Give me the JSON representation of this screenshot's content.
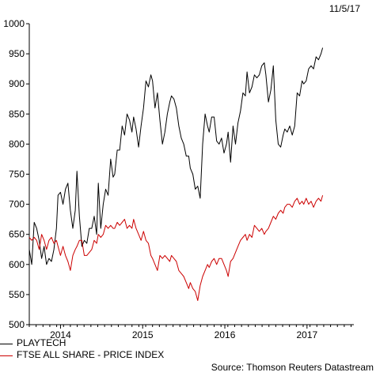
{
  "date_label": "11/5/17",
  "source": "Source: Thomson Reuters Datastream",
  "colors": {
    "playtech": "#000000",
    "ftse": "#cc0000"
  },
  "chart_data": {
    "type": "line",
    "ylim": [
      500,
      1000
    ],
    "yticks": [
      500,
      550,
      600,
      650,
      700,
      750,
      800,
      850,
      900,
      950,
      1000
    ],
    "xlim": [
      2013.45,
      2017.4
    ],
    "xticks": [
      {
        "label": "2014",
        "pos": 2013.83
      },
      {
        "label": "2015",
        "pos": 2014.83
      },
      {
        "label": "2016",
        "pos": 2015.83
      },
      {
        "label": "2017",
        "pos": 2016.83
      }
    ],
    "series": [
      {
        "name": "PLAYTECH",
        "color": "#000000",
        "points": [
          [
            2013.45,
            625
          ],
          [
            2013.48,
            600
          ],
          [
            2013.51,
            670
          ],
          [
            2013.54,
            660
          ],
          [
            2013.57,
            640
          ],
          [
            2013.6,
            610
          ],
          [
            2013.63,
            630
          ],
          [
            2013.66,
            600
          ],
          [
            2013.69,
            610
          ],
          [
            2013.72,
            605
          ],
          [
            2013.75,
            625
          ],
          [
            2013.78,
            660
          ],
          [
            2013.8,
            715
          ],
          [
            2013.83,
            720
          ],
          [
            2013.86,
            700
          ],
          [
            2013.89,
            725
          ],
          [
            2013.92,
            735
          ],
          [
            2013.95,
            690
          ],
          [
            2013.98,
            660
          ],
          [
            2014.01,
            690
          ],
          [
            2014.03,
            755
          ],
          [
            2014.06,
            680
          ],
          [
            2014.09,
            630
          ],
          [
            2014.12,
            640
          ],
          [
            2014.15,
            635
          ],
          [
            2014.18,
            660
          ],
          [
            2014.21,
            660
          ],
          [
            2014.24,
            680
          ],
          [
            2014.27,
            650
          ],
          [
            2014.29,
            735
          ],
          [
            2014.32,
            660
          ],
          [
            2014.35,
            700
          ],
          [
            2014.38,
            725
          ],
          [
            2014.41,
            715
          ],
          [
            2014.44,
            775
          ],
          [
            2014.47,
            745
          ],
          [
            2014.49,
            750
          ],
          [
            2014.52,
            790
          ],
          [
            2014.55,
            790
          ],
          [
            2014.58,
            830
          ],
          [
            2014.61,
            815
          ],
          [
            2014.64,
            850
          ],
          [
            2014.67,
            840
          ],
          [
            2014.7,
            820
          ],
          [
            2014.72,
            845
          ],
          [
            2014.75,
            825
          ],
          [
            2014.78,
            795
          ],
          [
            2014.81,
            830
          ],
          [
            2014.84,
            860
          ],
          [
            2014.87,
            905
          ],
          [
            2014.9,
            895
          ],
          [
            2014.93,
            915
          ],
          [
            2014.95,
            905
          ],
          [
            2014.98,
            860
          ],
          [
            2015.01,
            885
          ],
          [
            2015.04,
            840
          ],
          [
            2015.07,
            800
          ],
          [
            2015.1,
            820
          ],
          [
            2015.13,
            850
          ],
          [
            2015.16,
            870
          ],
          [
            2015.18,
            880
          ],
          [
            2015.21,
            875
          ],
          [
            2015.24,
            860
          ],
          [
            2015.27,
            830
          ],
          [
            2015.3,
            810
          ],
          [
            2015.33,
            800
          ],
          [
            2015.36,
            780
          ],
          [
            2015.39,
            780
          ],
          [
            2015.41,
            760
          ],
          [
            2015.44,
            750
          ],
          [
            2015.47,
            725
          ],
          [
            2015.5,
            730
          ],
          [
            2015.53,
            710
          ],
          [
            2015.56,
            800
          ],
          [
            2015.59,
            850
          ],
          [
            2015.62,
            830
          ],
          [
            2015.64,
            820
          ],
          [
            2015.67,
            845
          ],
          [
            2015.7,
            845
          ],
          [
            2015.73,
            805
          ],
          [
            2015.76,
            800
          ],
          [
            2015.79,
            810
          ],
          [
            2015.82,
            785
          ],
          [
            2015.85,
            800
          ],
          [
            2015.87,
            820
          ],
          [
            2015.9,
            770
          ],
          [
            2015.93,
            830
          ],
          [
            2015.96,
            800
          ],
          [
            2015.99,
            835
          ],
          [
            2016.02,
            855
          ],
          [
            2016.05,
            885
          ],
          [
            2016.08,
            880
          ],
          [
            2016.1,
            920
          ],
          [
            2016.13,
            885
          ],
          [
            2016.16,
            895
          ],
          [
            2016.19,
            915
          ],
          [
            2016.22,
            910
          ],
          [
            2016.25,
            915
          ],
          [
            2016.28,
            930
          ],
          [
            2016.31,
            935
          ],
          [
            2016.33,
            915
          ],
          [
            2016.36,
            870
          ],
          [
            2016.39,
            890
          ],
          [
            2016.42,
            930
          ],
          [
            2016.45,
            840
          ],
          [
            2016.48,
            800
          ],
          [
            2016.51,
            795
          ],
          [
            2016.54,
            815
          ],
          [
            2016.56,
            825
          ],
          [
            2016.59,
            820
          ],
          [
            2016.62,
            830
          ],
          [
            2016.65,
            815
          ],
          [
            2016.68,
            830
          ],
          [
            2016.71,
            885
          ],
          [
            2016.74,
            880
          ],
          [
            2016.77,
            905
          ],
          [
            2016.79,
            900
          ],
          [
            2016.82,
            905
          ],
          [
            2016.85,
            925
          ],
          [
            2016.88,
            930
          ],
          [
            2016.91,
            925
          ],
          [
            2016.94,
            945
          ],
          [
            2016.97,
            940
          ],
          [
            2017.0,
            950
          ],
          [
            2017.02,
            960
          ]
        ]
      },
      {
        "name": "FTSE ALL SHARE - PRICE INDEX",
        "color": "#cc0000",
        "points": [
          [
            2013.45,
            645
          ],
          [
            2013.48,
            640
          ],
          [
            2013.51,
            645
          ],
          [
            2013.54,
            640
          ],
          [
            2013.57,
            625
          ],
          [
            2013.6,
            650
          ],
          [
            2013.63,
            640
          ],
          [
            2013.66,
            625
          ],
          [
            2013.69,
            640
          ],
          [
            2013.72,
            645
          ],
          [
            2013.75,
            635
          ],
          [
            2013.78,
            640
          ],
          [
            2013.8,
            630
          ],
          [
            2013.83,
            615
          ],
          [
            2013.86,
            630
          ],
          [
            2013.89,
            615
          ],
          [
            2013.92,
            605
          ],
          [
            2013.95,
            590
          ],
          [
            2013.98,
            615
          ],
          [
            2014.01,
            625
          ],
          [
            2014.03,
            630
          ],
          [
            2014.06,
            640
          ],
          [
            2014.09,
            640
          ],
          [
            2014.12,
            615
          ],
          [
            2014.15,
            615
          ],
          [
            2014.18,
            620
          ],
          [
            2014.21,
            625
          ],
          [
            2014.24,
            640
          ],
          [
            2014.27,
            635
          ],
          [
            2014.29,
            650
          ],
          [
            2014.32,
            645
          ],
          [
            2014.35,
            650
          ],
          [
            2014.38,
            665
          ],
          [
            2014.41,
            660
          ],
          [
            2014.44,
            665
          ],
          [
            2014.47,
            660
          ],
          [
            2014.49,
            660
          ],
          [
            2014.52,
            670
          ],
          [
            2014.55,
            665
          ],
          [
            2014.58,
            670
          ],
          [
            2014.61,
            675
          ],
          [
            2014.64,
            660
          ],
          [
            2014.67,
            665
          ],
          [
            2014.7,
            660
          ],
          [
            2014.72,
            675
          ],
          [
            2014.75,
            660
          ],
          [
            2014.78,
            650
          ],
          [
            2014.81,
            640
          ],
          [
            2014.84,
            655
          ],
          [
            2014.87,
            640
          ],
          [
            2014.9,
            635
          ],
          [
            2014.93,
            615
          ],
          [
            2014.95,
            610
          ],
          [
            2014.98,
            600
          ],
          [
            2015.01,
            590
          ],
          [
            2015.04,
            615
          ],
          [
            2015.07,
            610
          ],
          [
            2015.1,
            615
          ],
          [
            2015.13,
            610
          ],
          [
            2015.16,
            605
          ],
          [
            2015.18,
            615
          ],
          [
            2015.21,
            610
          ],
          [
            2015.24,
            605
          ],
          [
            2015.27,
            590
          ],
          [
            2015.3,
            585
          ],
          [
            2015.33,
            580
          ],
          [
            2015.36,
            570
          ],
          [
            2015.39,
            560
          ],
          [
            2015.41,
            570
          ],
          [
            2015.44,
            560
          ],
          [
            2015.47,
            555
          ],
          [
            2015.5,
            540
          ],
          [
            2015.53,
            565
          ],
          [
            2015.56,
            580
          ],
          [
            2015.59,
            590
          ],
          [
            2015.62,
            600
          ],
          [
            2015.64,
            595
          ],
          [
            2015.67,
            605
          ],
          [
            2015.7,
            610
          ],
          [
            2015.73,
            600
          ],
          [
            2015.76,
            610
          ],
          [
            2015.79,
            610
          ],
          [
            2015.82,
            600
          ],
          [
            2015.85,
            590
          ],
          [
            2015.87,
            580
          ],
          [
            2015.9,
            605
          ],
          [
            2015.93,
            610
          ],
          [
            2015.96,
            620
          ],
          [
            2015.99,
            630
          ],
          [
            2016.02,
            640
          ],
          [
            2016.05,
            645
          ],
          [
            2016.08,
            650
          ],
          [
            2016.1,
            640
          ],
          [
            2016.13,
            650
          ],
          [
            2016.16,
            645
          ],
          [
            2016.19,
            665
          ],
          [
            2016.22,
            660
          ],
          [
            2016.25,
            655
          ],
          [
            2016.28,
            660
          ],
          [
            2016.31,
            650
          ],
          [
            2016.33,
            655
          ],
          [
            2016.36,
            660
          ],
          [
            2016.39,
            670
          ],
          [
            2016.42,
            680
          ],
          [
            2016.45,
            675
          ],
          [
            2016.48,
            685
          ],
          [
            2016.51,
            690
          ],
          [
            2016.54,
            685
          ],
          [
            2016.56,
            695
          ],
          [
            2016.59,
            700
          ],
          [
            2016.62,
            700
          ],
          [
            2016.65,
            695
          ],
          [
            2016.68,
            705
          ],
          [
            2016.71,
            710
          ],
          [
            2016.74,
            700
          ],
          [
            2016.77,
            705
          ],
          [
            2016.79,
            700
          ],
          [
            2016.82,
            710
          ],
          [
            2016.85,
            700
          ],
          [
            2016.88,
            705
          ],
          [
            2016.91,
            695
          ],
          [
            2016.94,
            705
          ],
          [
            2016.97,
            710
          ],
          [
            2017.0,
            705
          ],
          [
            2017.02,
            715
          ]
        ]
      }
    ]
  }
}
